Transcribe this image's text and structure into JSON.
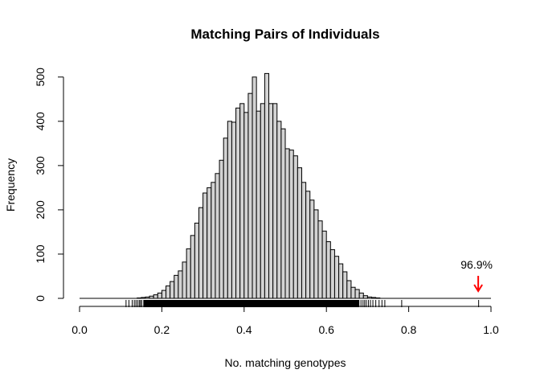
{
  "chart_data": {
    "type": "bar",
    "subtype": "histogram",
    "title": "Matching Pairs of Individuals",
    "xlabel": "No. matching genotypes",
    "ylabel": "Frequency",
    "xlim": [
      0,
      1
    ],
    "ylim": [
      0,
      510
    ],
    "x_ticks": [
      "0.0",
      "0.2",
      "0.4",
      "0.6",
      "0.8",
      "1.0"
    ],
    "y_ticks": [
      "0",
      "100",
      "200",
      "300",
      "400",
      "500"
    ],
    "grid": false,
    "bin_width": 0.01,
    "bin_start": 0.0,
    "bar_fill": "#d3d3d3",
    "bar_stroke": "#000000",
    "counts": [
      0,
      0,
      0,
      0,
      0,
      0,
      0,
      0,
      0,
      0,
      0,
      0,
      0,
      0,
      1,
      2,
      3,
      5,
      8,
      12,
      18,
      28,
      38,
      52,
      62,
      82,
      112,
      142,
      170,
      205,
      238,
      250,
      262,
      282,
      312,
      362,
      400,
      398,
      430,
      440,
      420,
      463,
      500,
      423,
      440,
      508,
      440,
      440,
      400,
      383,
      338,
      335,
      322,
      295,
      262,
      242,
      222,
      200,
      175,
      152,
      128,
      110,
      95,
      78,
      60,
      40,
      25,
      20,
      12,
      6,
      3,
      2,
      1,
      0
    ],
    "rug": {
      "dense_range": [
        0.155,
        0.68
      ],
      "sparse_left": [
        0.113,
        0.12,
        0.128,
        0.133,
        0.137,
        0.141,
        0.145,
        0.148,
        0.151
      ],
      "sparse_right": [
        0.684,
        0.689,
        0.693,
        0.697,
        0.702,
        0.707,
        0.713,
        0.72,
        0.728,
        0.735,
        0.742,
        0.783,
        0.97
      ]
    },
    "annotation": {
      "label": "96.9%",
      "x": 0.969,
      "color": "#ff0000"
    }
  }
}
